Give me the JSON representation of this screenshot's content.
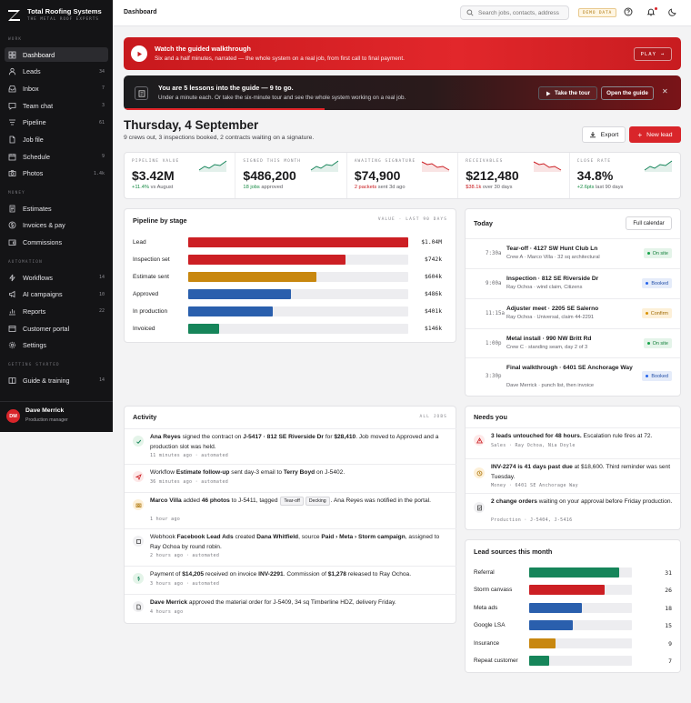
{
  "brand": {
    "name": "Total Roofing Systems",
    "tagline": "THE METAL ROOF EXPERTS"
  },
  "sidebar": {
    "sections": [
      "WORK",
      "MONEY",
      "AUTOMATION",
      "GETTING STARTED"
    ],
    "work": [
      {
        "label": "Dashboard",
        "count": "",
        "icon": "grid-icon"
      },
      {
        "label": "Leads",
        "count": "34",
        "icon": "person-icon"
      },
      {
        "label": "Inbox",
        "count": "7",
        "icon": "inbox-icon"
      },
      {
        "label": "Team chat",
        "count": "3",
        "icon": "chat-icon"
      },
      {
        "label": "Pipeline",
        "count": "61",
        "icon": "pipeline-icon"
      },
      {
        "label": "Job file",
        "count": "",
        "icon": "file-icon"
      },
      {
        "label": "Schedule",
        "count": "9",
        "icon": "calendar-icon"
      },
      {
        "label": "Photos",
        "count": "1.4k",
        "icon": "camera-icon"
      }
    ],
    "money": [
      {
        "label": "Estimates",
        "count": "",
        "icon": "document-icon"
      },
      {
        "label": "Invoices & pay",
        "count": "",
        "icon": "dollar-icon"
      },
      {
        "label": "Commissions",
        "count": "",
        "icon": "wallet-icon"
      }
    ],
    "automation": [
      {
        "label": "Workflows",
        "count": "14",
        "icon": "lightning-icon"
      },
      {
        "label": "AI campaigns",
        "count": "10",
        "icon": "megaphone-icon"
      },
      {
        "label": "Reports",
        "count": "22",
        "icon": "chart-icon"
      },
      {
        "label": "Customer portal",
        "count": "",
        "icon": "portal-icon"
      },
      {
        "label": "Settings",
        "count": "",
        "icon": "gear-icon"
      }
    ],
    "getting_started": [
      {
        "label": "Guide & training",
        "count": "14",
        "icon": "book-icon"
      }
    ]
  },
  "user": {
    "initials": "DM",
    "name": "Dave Merrick",
    "role": "Production manager"
  },
  "topbar": {
    "breadcrumb": "Dashboard",
    "search_placeholder": "Search jobs, contacts, address",
    "demo_badge": "DEMO DATA"
  },
  "banner1": {
    "title": "Watch the guided walkthrough",
    "subtitle": "Six and a half minutes, narrated — the whole system on a real job, from first call to final payment.",
    "button": "PLAY"
  },
  "banner2": {
    "title": "You are 5 lessons into the guide — 9 to go.",
    "subtitle": "Under a minute each. Or take the six-minute tour and see the whole system working on a real job.",
    "progress": 0.36,
    "tour_button": "Take the tour",
    "guide_button": "Open the guide",
    "close": "✕"
  },
  "header": {
    "title": "Thursday, 4 September",
    "subtitle": "9 crews out, 3 inspections booked, 2 contracts waiting on a signature.",
    "export_label": "Export",
    "new_lead_label": "New lead"
  },
  "kpis": [
    {
      "label": "PIPELINE VALUE",
      "value": "$3.42M",
      "delta": "+11.4%",
      "delta_note": "vs August",
      "trend": "up"
    },
    {
      "label": "SIGNED THIS MONTH",
      "value": "$486,200",
      "delta": "18 jobs",
      "delta_note": "approved",
      "trend": "up"
    },
    {
      "label": "AWAITING SIGNATURE",
      "value": "$74,900",
      "delta": "2 packets",
      "delta_note": "sent 3d ago",
      "trend": "down"
    },
    {
      "label": "RECEIVABLES",
      "value": "$212,480",
      "delta": "$38.1k",
      "delta_note": "over 30 days",
      "trend": "down"
    },
    {
      "label": "CLOSE RATE",
      "value": "34.8%",
      "delta": "+2.6pts",
      "delta_note": "last 90 days",
      "trend": "up"
    }
  ],
  "colors": {
    "accent": "#d9252a",
    "green": "#16855a",
    "blue": "#2a5fad",
    "amber": "#c8870f",
    "red": "#cc1f24"
  },
  "pipeline": {
    "title": "Pipeline by stage",
    "range_label": "VALUE · LAST 90 DAYS",
    "max": 1040,
    "stages": [
      {
        "label": "Lead",
        "value": 1040,
        "display": "$1.04M",
        "color": "#cc1f24"
      },
      {
        "label": "Inspection set",
        "value": 742,
        "display": "$742k",
        "color": "#cc1f24"
      },
      {
        "label": "Estimate sent",
        "value": 604,
        "display": "$604k",
        "color": "#c8870f"
      },
      {
        "label": "Approved",
        "value": 486,
        "display": "$486k",
        "color": "#2a5fad"
      },
      {
        "label": "In production",
        "value": 401,
        "display": "$401k",
        "color": "#2a5fad"
      },
      {
        "label": "Invoiced",
        "value": 146,
        "display": "$146k",
        "color": "#16855a"
      }
    ]
  },
  "today": {
    "title": "Today",
    "button": "Full calendar",
    "items": [
      {
        "time": "7:30a",
        "title": "Tear-off · 4127 SW Hunt Club Ln",
        "sub": "Crew A · Marco Villa · 32 sq architectural",
        "status": "On site",
        "tone": "green"
      },
      {
        "time": "9:00a",
        "title": "Inspection · 812 SE Riverside Dr",
        "sub": "Ray Ochoa · wind claim, Citizens",
        "status": "Booked",
        "tone": "blue"
      },
      {
        "time": "11:15a",
        "title": "Adjuster meet · 2205 SE Salerno",
        "sub": "Ray Ochoa · Universal, claim 44-2291",
        "status": "Confirm",
        "tone": "amber"
      },
      {
        "time": "1:00p",
        "title": "Metal install · 990 NW Britt Rd",
        "sub": "Crew C · standing seam, day 2 of 3",
        "status": "On site",
        "tone": "green"
      },
      {
        "time": "3:30p",
        "title": "Final walkthrough · 6401 SE Anchorage Way",
        "sub": "Dave Merrick · punch list, then invoice",
        "status": "Booked",
        "tone": "blue"
      }
    ]
  },
  "activity": {
    "title": "Activity",
    "filter": "ALL JOBS",
    "items": [
      {
        "icon": "check-icon",
        "p1": "Ana Reyes",
        "p2": " signed the contract on ",
        "p3": "J-5417 · 812 SE Riverside Dr",
        "p4": " for ",
        "p5": "$28,410",
        "p6": ". Job moved to Approved and a production slot was held.",
        "meta": "11 minutes ago · automated"
      },
      {
        "icon": "send-icon",
        "p1": "Workflow ",
        "p2": "Estimate follow-up",
        "p3": " sent day-3 email to ",
        "p4": "Terry Boyd",
        "p5": " on J-5402.",
        "meta": "36 minutes ago · automated"
      },
      {
        "icon": "camera-icon",
        "p1": "Marco Villa",
        "p2": " added ",
        "p3": "46 photos",
        "p4": " to J-5411, tagged ",
        "chip1": "Tear-off",
        "chip2": "Decking",
        "p5": ". Ana Reyes was notified in the portal.",
        "meta": "1 hour ago"
      },
      {
        "icon": "webhook-icon",
        "p1": "Webhook ",
        "p2": "Facebook Lead Ads",
        "p3": " created ",
        "p4": "Dana Whitfield",
        "p5": ", source ",
        "p6": "Paid › Meta › Storm campaign",
        "p7": ", assigned to Ray Ochoa by round robin.",
        "meta": "2 hours ago · automated"
      },
      {
        "icon": "dollar-icon",
        "p1": "Payment of ",
        "p2": "$14,205",
        "p3": " received on invoice ",
        "p4": "INV-2291",
        "p5": ". Commission of ",
        "p6": "$1,278",
        "p7": " released to Ray Ochoa.",
        "meta": "3 hours ago · automated"
      },
      {
        "icon": "document-icon",
        "p1": "Dave Merrick",
        "p2": " approved the material order for J-5409, 34 sq Timberline HDZ, delivery Friday.",
        "meta": "4 hours ago"
      }
    ]
  },
  "needs": {
    "title": "Needs you",
    "items": [
      {
        "icon": "warning-icon",
        "b": "3 leads untouched for 48 hours.",
        "t": " Escalation rule fires at 72.",
        "meta": "Sales · Ray Ochoa, Nia Doyle"
      },
      {
        "icon": "clock-icon",
        "b": "INV-2274 is 41 days past due",
        "t": " at $18,600. Third reminder was sent Tuesday.",
        "meta": "Money · 6401 SE Anchorage Way"
      },
      {
        "icon": "doc-check-icon",
        "b": "2 change orders",
        "t": " waiting on your approval before Friday production.",
        "meta": "Production · J-5404, J-5416"
      }
    ]
  },
  "sources": {
    "title": "Lead sources this month",
    "max": 31,
    "items": [
      {
        "label": "Referral",
        "value": 31,
        "color": "#16855a"
      },
      {
        "label": "Storm canvass",
        "value": 26,
        "color": "#cc1f24"
      },
      {
        "label": "Meta ads",
        "value": 18,
        "color": "#2a5fad"
      },
      {
        "label": "Google LSA",
        "value": 15,
        "color": "#2a5fad"
      },
      {
        "label": "Insurance",
        "value": 9,
        "color": "#c8870f"
      },
      {
        "label": "Repeat customer",
        "value": 7,
        "color": "#16855a"
      }
    ]
  }
}
